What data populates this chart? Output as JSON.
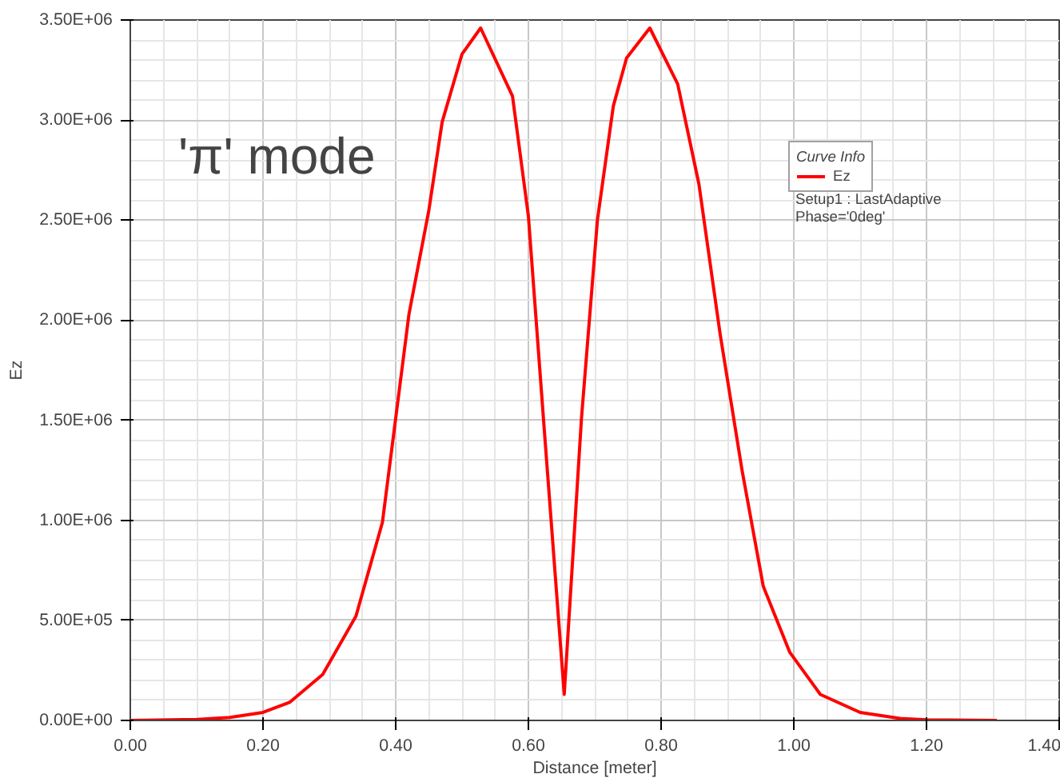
{
  "chart_data": {
    "type": "line",
    "xlabel": "Distance [meter]",
    "ylabel": "Ez",
    "legend_title": "Curve Info",
    "legend": "top right",
    "annotations": [
      "'π' mode",
      "Setup1 : LastAdaptive",
      "Phase='0deg'"
    ],
    "xlim": [
      0,
      1.4
    ],
    "xticks": [
      {
        "value": 0,
        "label": "0.00"
      },
      {
        "value": 0.2,
        "label": "0.20"
      },
      {
        "value": 0.4,
        "label": "0.40"
      },
      {
        "value": 0.6,
        "label": "0.60"
      },
      {
        "value": 0.8,
        "label": "0.80"
      },
      {
        "value": 1.0,
        "label": "1.00"
      },
      {
        "value": 1.2,
        "label": "1.20"
      },
      {
        "value": 1.4,
        "label": "1.40"
      }
    ],
    "ylim": [
      0,
      3500000
    ],
    "yticks": [
      {
        "value": 0,
        "label": "0.00E+00"
      },
      {
        "value": 500000,
        "label": "5.00E+05"
      },
      {
        "value": 1000000,
        "label": "1.00E+06"
      },
      {
        "value": 1500000,
        "label": "1.50E+06"
      },
      {
        "value": 2000000,
        "label": "2.00E+06"
      },
      {
        "value": 2500000,
        "label": "2.50E+06"
      },
      {
        "value": 3000000,
        "label": "3.00E+06"
      },
      {
        "value": 3500000,
        "label": "3.50E+06"
      }
    ],
    "grid": true,
    "marker": "none",
    "line_style": "solid",
    "series": [
      {
        "name": "Ez",
        "color": "#ff0000",
        "x": [
          0,
          0.1,
          0.15,
          0.2,
          0.24,
          0.29,
          0.34,
          0.38,
          0.42,
          0.45,
          0.47,
          0.5,
          0.528,
          0.576,
          0.6,
          0.624,
          0.654,
          0.68,
          0.704,
          0.728,
          0.748,
          0.783,
          0.825,
          0.857,
          0.889,
          0.922,
          0.954,
          0.994,
          1.04,
          1.1,
          1.16,
          1.2,
          1.306
        ],
        "values": [
          0,
          5000,
          15000,
          40000,
          90000,
          230000,
          520000,
          990000,
          2030000,
          2550000,
          2990000,
          3330000,
          3460000,
          3120000,
          2520000,
          1450000,
          130000,
          1510000,
          2500000,
          3070000,
          3310000,
          3460000,
          3180000,
          2680000,
          1930000,
          1250000,
          670000,
          340000,
          130000,
          40000,
          10000,
          3000,
          0
        ]
      }
    ]
  }
}
